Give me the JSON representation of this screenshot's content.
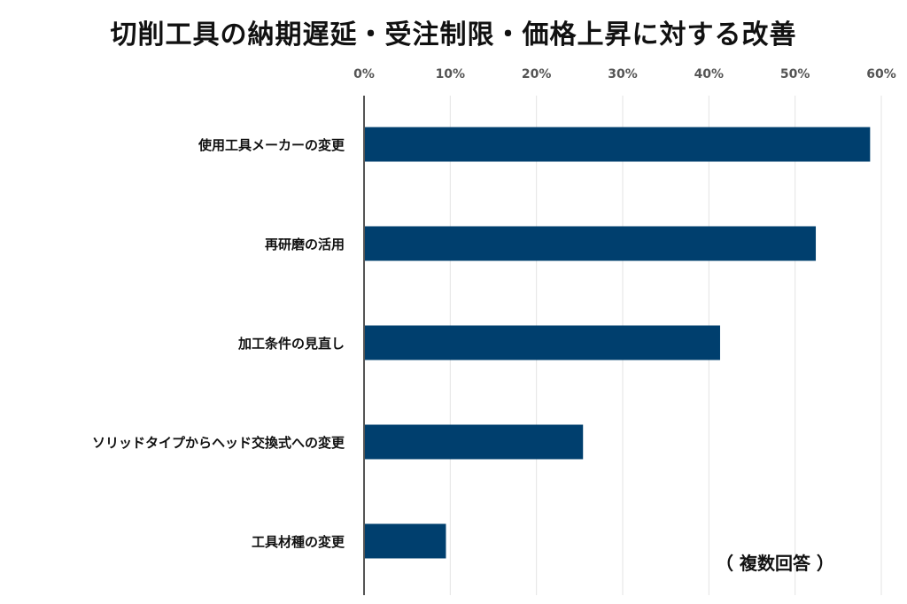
{
  "chart_data": {
    "type": "bar",
    "orientation": "horizontal",
    "title": "切削工具の納期遅延・受注制限・価格上昇に対する改善",
    "note": "（ 複数回答 ）",
    "categories": [
      "使用工具メーカーの変更",
      "再研磨の活用",
      "加工条件の見直し",
      "ソリッドタイプからヘッド交換式への変更",
      "工具材種の変更"
    ],
    "values": [
      58.7,
      52.4,
      41.3,
      25.4,
      9.5
    ],
    "xlim": [
      0,
      60
    ],
    "xticks": [
      0,
      10,
      20,
      30,
      40,
      50,
      60
    ],
    "xtick_labels": [
      "0%",
      "10%",
      "20%",
      "30%",
      "40%",
      "50%",
      "60%"
    ],
    "xaxis_position": "top",
    "grid": true,
    "legend": "none",
    "bar_color": "#003F6E",
    "grid_color": "#E3E3E3",
    "axis_color": "#555555"
  }
}
